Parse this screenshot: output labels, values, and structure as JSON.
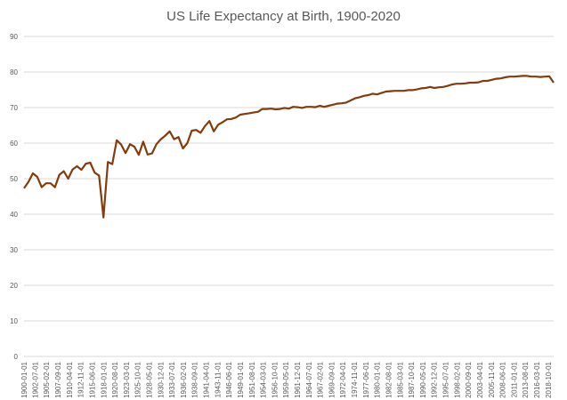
{
  "chart_data": {
    "type": "line",
    "title": "US Life Expectancy at Birth, 1900-2020",
    "xlabel": "",
    "ylabel": "",
    "ylim": [
      0,
      90
    ],
    "yticks": [
      0,
      10,
      20,
      30,
      40,
      50,
      60,
      70,
      80,
      90
    ],
    "grid": true,
    "legend": "none",
    "line_color": "#843c0c",
    "x_tick_labels": [
      "1900-01-01",
      "1902-07-01",
      "1905-02-01",
      "1907-09-01",
      "1910-04-01",
      "1912-11-01",
      "1915-06-01",
      "1918-01-01",
      "1920-08-01",
      "1923-03-01",
      "1925-10-01",
      "1928-05-01",
      "1930-12-01",
      "1933-07-01",
      "1936-02-01",
      "1938-09-01",
      "1941-04-01",
      "1943-11-01",
      "1946-06-01",
      "1949-01-01",
      "1951-08-01",
      "1954-03-01",
      "1956-10-01",
      "1959-05-01",
      "1961-12-01",
      "1964-07-01",
      "1967-02-01",
      "1969-09-01",
      "1972-04-01",
      "1974-11-01",
      "1977-06-01",
      "1980-01-01",
      "1982-08-01",
      "1985-03-01",
      "1987-10-01",
      "1990-05-01",
      "1992-12-01",
      "1995-07-01",
      "1998-02-01",
      "2000-09-01",
      "2003-04-01",
      "2005-11-01",
      "2008-06-01",
      "2011-01-01",
      "2013-08-01",
      "2016-03-01",
      "2018-10-01"
    ],
    "series": [
      {
        "x": [
          1900,
          1901,
          1902,
          1903,
          1904,
          1905,
          1906,
          1907,
          1908,
          1909,
          1910,
          1911,
          1912,
          1913,
          1914,
          1915,
          1916,
          1917,
          1918,
          1919,
          1920,
          1921,
          1922,
          1923,
          1924,
          1925,
          1926,
          1927,
          1928,
          1929,
          1930,
          1931,
          1932,
          1933,
          1934,
          1935,
          1936,
          1937,
          1938,
          1939,
          1940,
          1941,
          1942,
          1943,
          1944,
          1945,
          1946,
          1947,
          1948,
          1949,
          1950,
          1951,
          1952,
          1953,
          1954,
          1955,
          1956,
          1957,
          1958,
          1959,
          1960,
          1961,
          1962,
          1963,
          1964,
          1965,
          1966,
          1967,
          1968,
          1969,
          1970,
          1971,
          1972,
          1973,
          1974,
          1975,
          1976,
          1977,
          1978,
          1979,
          1980,
          1981,
          1982,
          1983,
          1984,
          1985,
          1986,
          1987,
          1988,
          1989,
          1990,
          1991,
          1992,
          1993,
          1994,
          1995,
          1996,
          1997,
          1998,
          1999,
          2000,
          2001,
          2002,
          2003,
          2004,
          2005,
          2006,
          2007,
          2008,
          2009,
          2010,
          2011,
          2012,
          2013,
          2014,
          2015,
          2016,
          2017,
          2018,
          2019,
          2020
        ],
        "values": [
          47.3,
          49.1,
          51.5,
          50.5,
          47.6,
          48.7,
          48.7,
          47.6,
          51.1,
          52.1,
          50.0,
          52.6,
          53.5,
          52.5,
          54.2,
          54.5,
          51.7,
          50.9,
          39.1,
          54.7,
          54.1,
          60.8,
          59.6,
          57.2,
          59.7,
          59.0,
          56.7,
          60.4,
          56.8,
          57.1,
          59.7,
          61.1,
          62.1,
          63.3,
          61.1,
          61.7,
          58.5,
          60.0,
          63.5,
          63.7,
          62.9,
          64.8,
          66.2,
          63.3,
          65.2,
          65.9,
          66.7,
          66.8,
          67.2,
          68.0,
          68.2,
          68.4,
          68.6,
          68.8,
          69.6,
          69.6,
          69.7,
          69.5,
          69.6,
          69.9,
          69.7,
          70.2,
          70.1,
          69.9,
          70.2,
          70.2,
          70.1,
          70.5,
          70.2,
          70.5,
          70.8,
          71.1,
          71.2,
          71.4,
          72.0,
          72.6,
          72.9,
          73.3,
          73.5,
          73.9,
          73.7,
          74.1,
          74.5,
          74.6,
          74.7,
          74.7,
          74.7,
          74.9,
          74.9,
          75.1,
          75.4,
          75.5,
          75.8,
          75.5,
          75.7,
          75.8,
          76.1,
          76.5,
          76.7,
          76.7,
          76.8,
          77.0,
          77.0,
          77.1,
          77.5,
          77.5,
          77.8,
          78.1,
          78.2,
          78.5,
          78.7,
          78.7,
          78.8,
          78.9,
          78.9,
          78.7,
          78.7,
          78.6,
          78.7,
          78.8,
          77.0
        ]
      }
    ]
  }
}
